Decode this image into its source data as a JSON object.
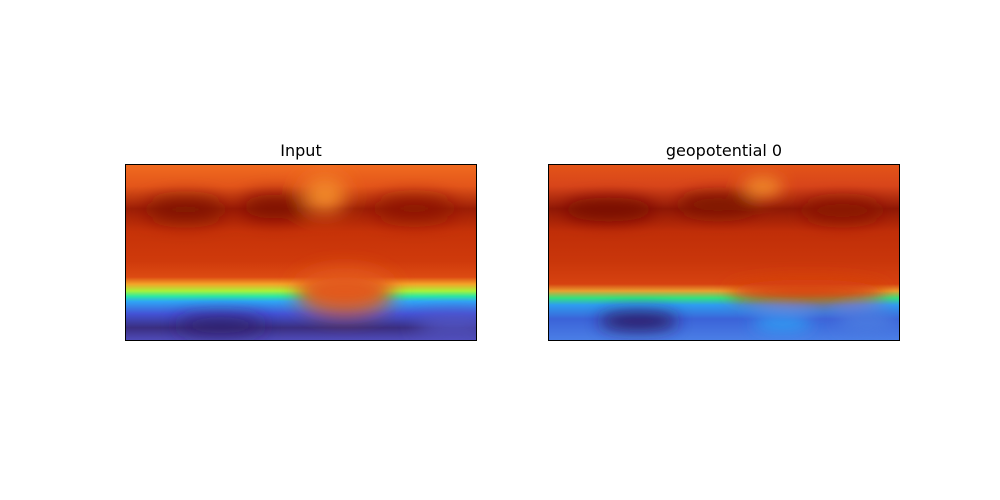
{
  "chart_data": [
    {
      "type": "heatmap",
      "title": "Input",
      "colormap": "turbo",
      "axes_visible": false,
      "grid": false
    },
    {
      "type": "heatmap",
      "title": "geopotential 0",
      "colormap": "turbo",
      "axes_visible": false,
      "grid": false
    }
  ]
}
